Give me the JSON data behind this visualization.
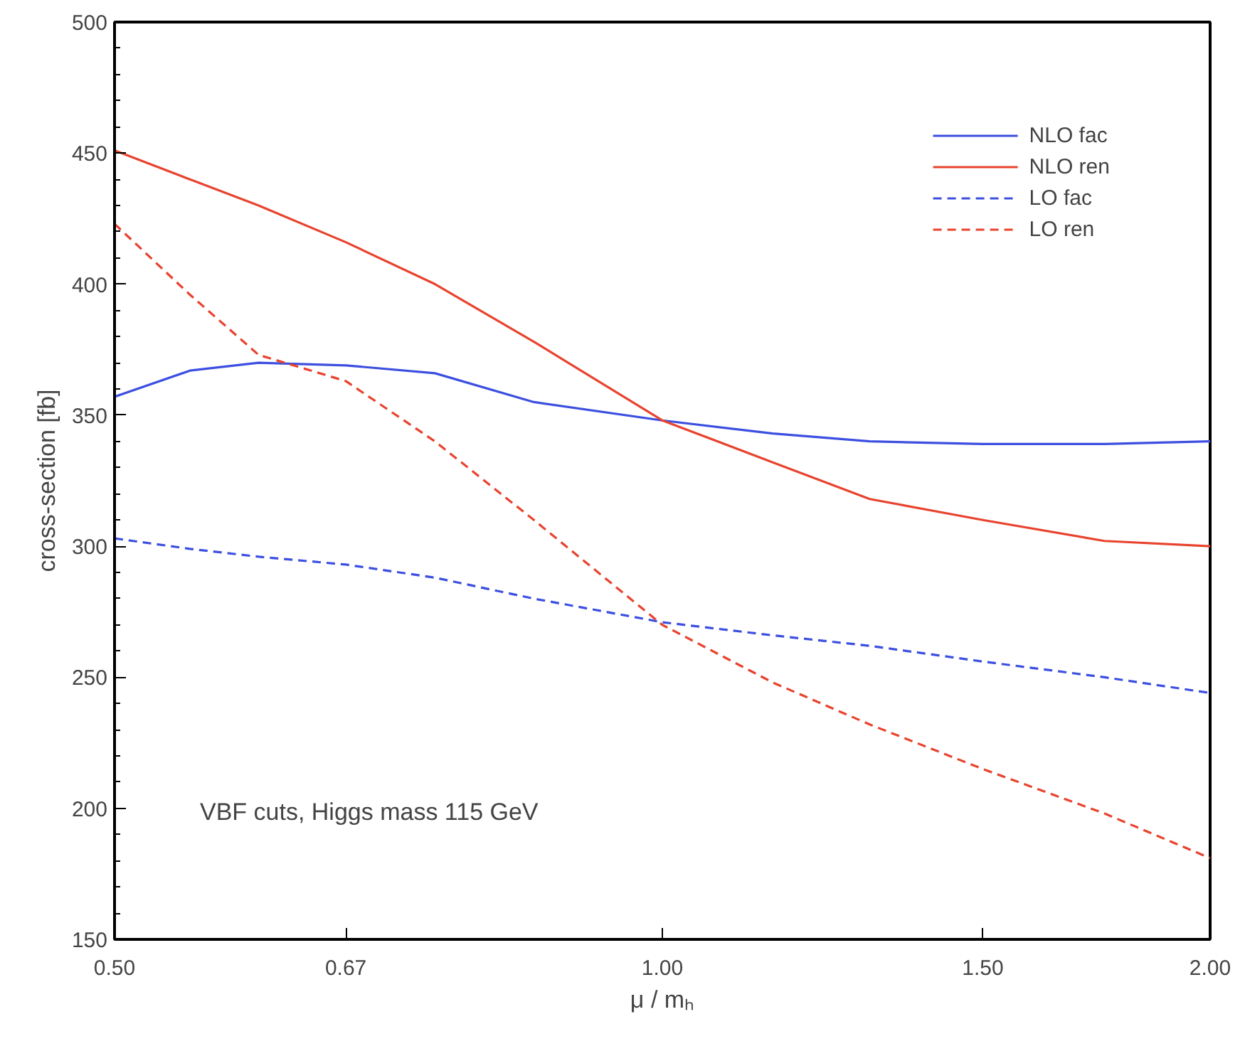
{
  "chart_data": {
    "type": "line",
    "xlabel": "μ / mₕ",
    "ylabel": "cross-section [fb]",
    "x": [
      0.5,
      0.55,
      0.6,
      0.67,
      0.75,
      0.85,
      1.0,
      1.15,
      1.3,
      1.5,
      1.75,
      2.0
    ],
    "series": [
      {
        "name": "NLO fac",
        "color": "#3c4fe0",
        "line_style": "solid",
        "values": [
          357,
          367,
          370,
          369,
          366,
          355,
          348,
          343,
          340,
          339,
          339,
          340
        ]
      },
      {
        "name": "NLO ren",
        "color": "#e8432e",
        "line_style": "solid",
        "values": [
          451,
          440,
          430,
          416,
          400,
          378,
          348,
          332,
          318,
          310,
          302,
          300
        ]
      },
      {
        "name": "LO fac",
        "color": "#3c4fe0",
        "line_style": "dashed",
        "values": [
          303,
          299,
          296,
          293,
          288,
          280,
          271,
          266,
          262,
          256,
          250,
          244
        ]
      },
      {
        "name": "LO ren",
        "color": "#e8432e",
        "line_style": "dashed",
        "values": [
          423,
          396,
          373,
          363,
          340,
          310,
          270,
          248,
          232,
          215,
          198,
          181
        ]
      }
    ],
    "log": "x",
    "xlim": [
      0.5,
      2.0
    ],
    "xticks": [
      {
        "value": 0.5,
        "label": "0.50"
      },
      {
        "value": 0.67,
        "label": "0.67"
      },
      {
        "value": 1.0,
        "label": "1.00"
      },
      {
        "value": 1.5,
        "label": "1.50"
      },
      {
        "value": 2.0,
        "label": "2.00"
      }
    ],
    "ylim": [
      150,
      500
    ],
    "yticks": [
      150,
      200,
      250,
      300,
      350,
      400,
      450,
      500
    ],
    "grid": false,
    "legend": "top right",
    "marker": "none",
    "annotations": [
      "VBF cuts, Higgs mass 115 GeV"
    ]
  }
}
